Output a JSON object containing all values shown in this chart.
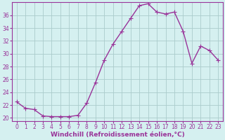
{
  "x": [
    0,
    1,
    2,
    3,
    4,
    5,
    6,
    7,
    8,
    9,
    10,
    11,
    12,
    13,
    14,
    15,
    16,
    17,
    18,
    19,
    20,
    21,
    22,
    23
  ],
  "y": [
    22.5,
    21.5,
    21.3,
    20.3,
    20.2,
    20.2,
    20.2,
    20.4,
    22.3,
    25.5,
    29.0,
    31.5,
    33.5,
    35.5,
    37.5,
    37.8,
    36.5,
    36.2,
    36.5,
    33.5,
    28.5,
    31.2,
    30.5,
    29.0
  ],
  "line_color": "#993399",
  "marker": "s",
  "markersize": 2.5,
  "linewidth": 1.0,
  "background_color": "#d5f0f0",
  "grid_color": "#aacccc",
  "xlabel": "Windchill (Refroidissement éolien,°C)",
  "xlabel_fontsize": 6.5,
  "ylabel_ticks": [
    20,
    22,
    24,
    26,
    28,
    30,
    32,
    34,
    36
  ],
  "ylim": [
    19.5,
    38.0
  ],
  "xlim": [
    -0.5,
    23.5
  ],
  "tick_fontsize": 5.5,
  "spine_color": "#993399",
  "axis_label_color": "#993399",
  "tick_label_color": "#993399"
}
